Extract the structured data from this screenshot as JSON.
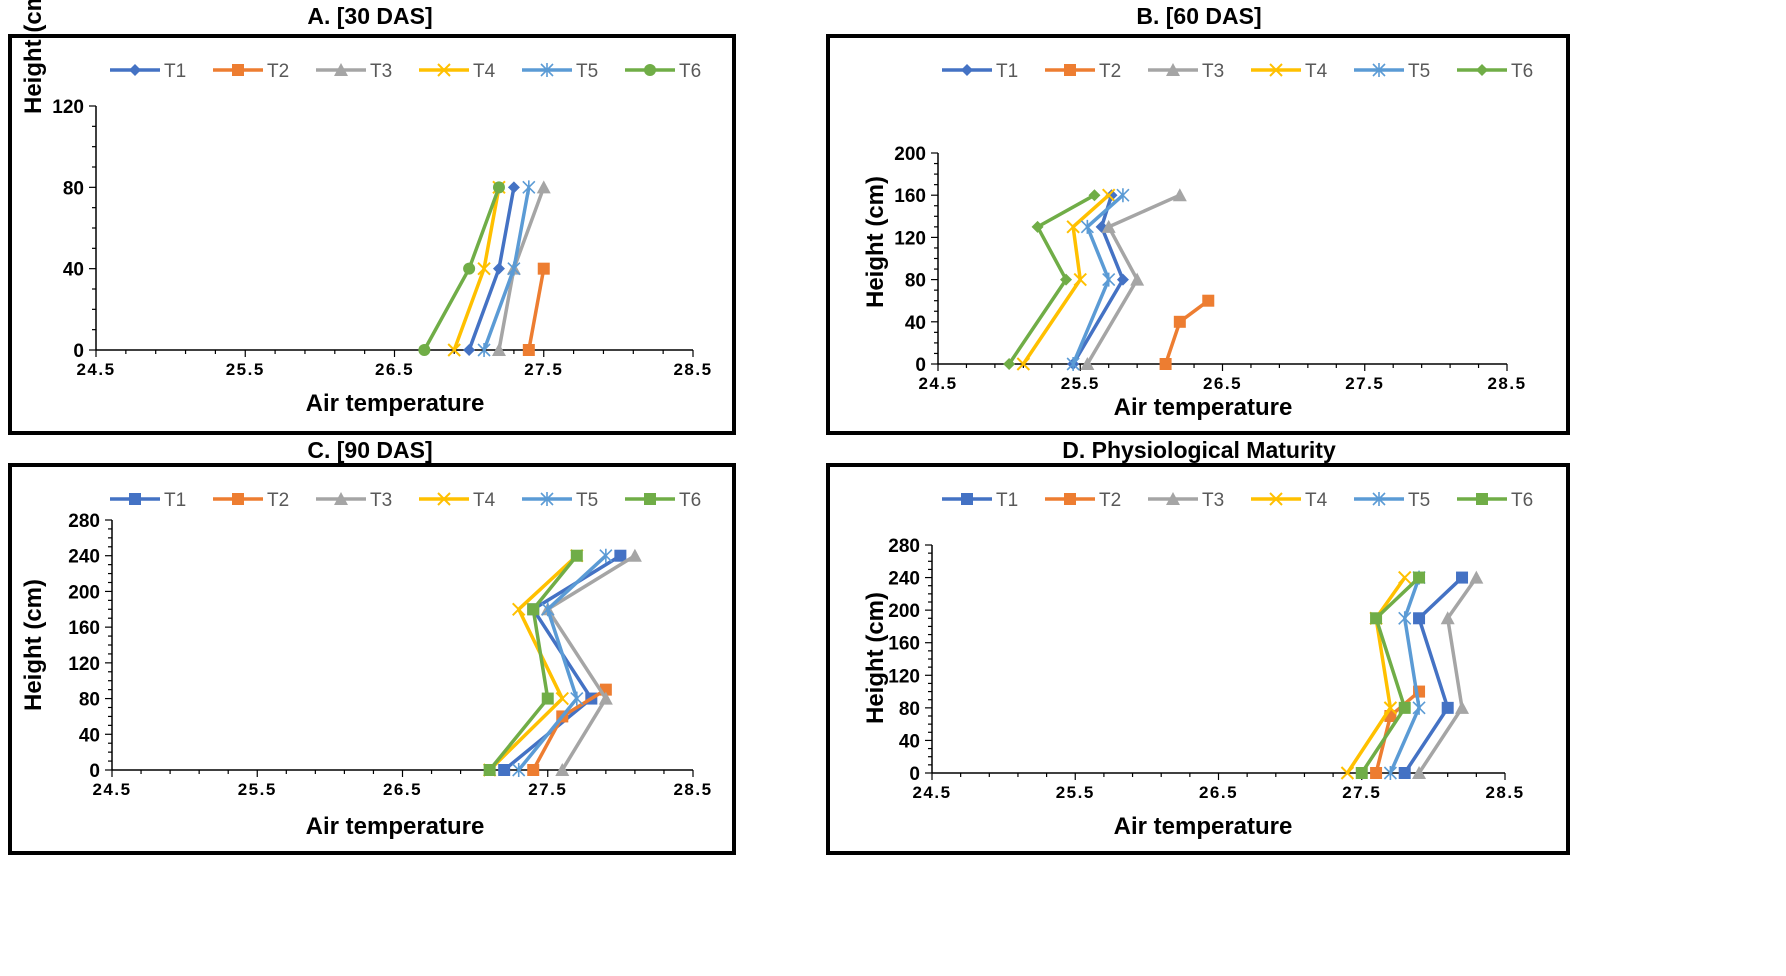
{
  "chart_data": [
    {
      "type": "line",
      "title": "A. [30 DAS]",
      "xlabel": "Air temperature",
      "ylabel": "Height (cm)",
      "xlim": [
        24.5,
        28.5
      ],
      "xticks": [
        "24.5",
        "25.5",
        "26.5",
        "27.5",
        "28.5"
      ],
      "ylim": [
        0,
        120
      ],
      "yticks": [
        "0",
        "40",
        "80",
        "120"
      ],
      "legend_position": "top",
      "series": [
        {
          "name": "T1",
          "color": "#4472C4",
          "marker": "diamond",
          "points": [
            [
              27.0,
              0
            ],
            [
              27.2,
              40
            ],
            [
              27.3,
              80
            ]
          ]
        },
        {
          "name": "T2",
          "color": "#ED7D31",
          "marker": "square",
          "points": [
            [
              27.4,
              0
            ],
            [
              27.5,
              40
            ]
          ]
        },
        {
          "name": "T3",
          "color": "#A5A5A5",
          "marker": "triangle",
          "points": [
            [
              27.2,
              0
            ],
            [
              27.3,
              40
            ],
            [
              27.5,
              80
            ]
          ]
        },
        {
          "name": "T4",
          "color": "#FFC000",
          "marker": "x",
          "points": [
            [
              26.9,
              0
            ],
            [
              27.1,
              40
            ],
            [
              27.2,
              80
            ]
          ]
        },
        {
          "name": "T5",
          "color": "#5B9BD5",
          "marker": "star",
          "points": [
            [
              27.1,
              0
            ],
            [
              27.3,
              40
            ],
            [
              27.4,
              80
            ]
          ]
        },
        {
          "name": "T6",
          "color": "#70AD47",
          "marker": "circle",
          "points": [
            [
              26.7,
              0
            ],
            [
              27.0,
              40
            ],
            [
              27.2,
              80
            ]
          ]
        }
      ]
    },
    {
      "type": "line",
      "title": "B. [60 DAS]",
      "xlabel": "Air temperature",
      "ylabel": "Height (cm)",
      "xlim": [
        24.5,
        28.5
      ],
      "xticks": [
        "24.5",
        "25.5",
        "26.5",
        "27.5",
        "28.5"
      ],
      "ylim": [
        0,
        200
      ],
      "yticks": [
        "0",
        "40",
        "80",
        "120",
        "160",
        "200"
      ],
      "legend_position": "top",
      "series": [
        {
          "name": "T1",
          "color": "#4472C4",
          "marker": "diamond",
          "points": [
            [
              25.45,
              0
            ],
            [
              25.8,
              80
            ],
            [
              25.65,
              130
            ],
            [
              25.72,
              160
            ]
          ]
        },
        {
          "name": "T2",
          "color": "#ED7D31",
          "marker": "square",
          "points": [
            [
              26.1,
              0
            ],
            [
              26.2,
              40
            ],
            [
              26.4,
              60
            ]
          ]
        },
        {
          "name": "T3",
          "color": "#A5A5A5",
          "marker": "triangle",
          "points": [
            [
              25.55,
              0
            ],
            [
              25.9,
              80
            ],
            [
              25.7,
              130
            ],
            [
              26.2,
              160
            ]
          ]
        },
        {
          "name": "T4",
          "color": "#FFC000",
          "marker": "x",
          "points": [
            [
              25.1,
              0
            ],
            [
              25.5,
              80
            ],
            [
              25.45,
              130
            ],
            [
              25.7,
              160
            ]
          ]
        },
        {
          "name": "T5",
          "color": "#5B9BD5",
          "marker": "star",
          "points": [
            [
              25.45,
              0
            ],
            [
              25.7,
              80
            ],
            [
              25.55,
              130
            ],
            [
              25.8,
              160
            ]
          ]
        },
        {
          "name": "T6",
          "color": "#70AD47",
          "marker": "diamond",
          "points": [
            [
              25.0,
              0
            ],
            [
              25.4,
              80
            ],
            [
              25.2,
              130
            ],
            [
              25.6,
              160
            ]
          ]
        }
      ]
    },
    {
      "type": "line",
      "title": "C. [90 DAS]",
      "xlabel": "Air temperature",
      "ylabel": "Height (cm)",
      "xlim": [
        24.5,
        28.5
      ],
      "xticks": [
        "24.5",
        "25.5",
        "26.5",
        "27.5",
        "28.5"
      ],
      "ylim": [
        0,
        280
      ],
      "yticks": [
        "0",
        "40",
        "80",
        "120",
        "160",
        "200",
        "240",
        "280"
      ],
      "legend_position": "top",
      "series": [
        {
          "name": "T1",
          "color": "#4472C4",
          "marker": "square",
          "points": [
            [
              27.2,
              0
            ],
            [
              27.8,
              80
            ],
            [
              27.4,
              180
            ],
            [
              28.0,
              240
            ]
          ]
        },
        {
          "name": "T2",
          "color": "#ED7D31",
          "marker": "square",
          "points": [
            [
              27.4,
              0
            ],
            [
              27.6,
              60
            ],
            [
              27.9,
              90
            ]
          ]
        },
        {
          "name": "T3",
          "color": "#A5A5A5",
          "marker": "triangle",
          "points": [
            [
              27.6,
              0
            ],
            [
              27.9,
              80
            ],
            [
              27.5,
              180
            ],
            [
              28.1,
              240
            ]
          ]
        },
        {
          "name": "T4",
          "color": "#FFC000",
          "marker": "x",
          "points": [
            [
              27.1,
              0
            ],
            [
              27.6,
              80
            ],
            [
              27.3,
              180
            ],
            [
              27.7,
              240
            ]
          ]
        },
        {
          "name": "T5",
          "color": "#5B9BD5",
          "marker": "star",
          "points": [
            [
              27.3,
              0
            ],
            [
              27.7,
              80
            ],
            [
              27.5,
              180
            ],
            [
              27.9,
              240
            ]
          ]
        },
        {
          "name": "T6",
          "color": "#70AD47",
          "marker": "square",
          "points": [
            [
              27.1,
              0
            ],
            [
              27.5,
              80
            ],
            [
              27.4,
              180
            ],
            [
              27.7,
              240
            ]
          ]
        }
      ]
    },
    {
      "type": "line",
      "title": "D. Physiological Maturity",
      "xlabel": "Air temperature",
      "ylabel": "Height (cm)",
      "xlim": [
        24.5,
        28.5
      ],
      "xticks": [
        "24.5",
        "25.5",
        "26.5",
        "27.5",
        "28.5"
      ],
      "ylim": [
        0,
        280
      ],
      "yticks": [
        "0",
        "40",
        "80",
        "120",
        "160",
        "200",
        "240",
        "280"
      ],
      "legend_position": "top",
      "series": [
        {
          "name": "T1",
          "color": "#4472C4",
          "marker": "square",
          "points": [
            [
              27.8,
              0
            ],
            [
              28.1,
              80
            ],
            [
              27.9,
              190
            ],
            [
              28.2,
              240
            ]
          ]
        },
        {
          "name": "T2",
          "color": "#ED7D31",
          "marker": "square",
          "points": [
            [
              27.6,
              0
            ],
            [
              27.7,
              70
            ],
            [
              27.9,
              100
            ]
          ]
        },
        {
          "name": "T3",
          "color": "#A5A5A5",
          "marker": "triangle",
          "points": [
            [
              27.9,
              0
            ],
            [
              28.2,
              80
            ],
            [
              28.1,
              190
            ],
            [
              28.3,
              240
            ]
          ]
        },
        {
          "name": "T4",
          "color": "#FFC000",
          "marker": "x",
          "points": [
            [
              27.4,
              0
            ],
            [
              27.7,
              80
            ],
            [
              27.6,
              190
            ],
            [
              27.8,
              240
            ]
          ]
        },
        {
          "name": "T5",
          "color": "#5B9BD5",
          "marker": "star",
          "points": [
            [
              27.7,
              0
            ],
            [
              27.9,
              80
            ],
            [
              27.8,
              190
            ],
            [
              27.9,
              240
            ]
          ]
        },
        {
          "name": "T6",
          "color": "#70AD47",
          "marker": "square",
          "points": [
            [
              27.5,
              0
            ],
            [
              27.8,
              80
            ],
            [
              27.6,
              190
            ],
            [
              27.9,
              240
            ]
          ]
        }
      ]
    }
  ]
}
